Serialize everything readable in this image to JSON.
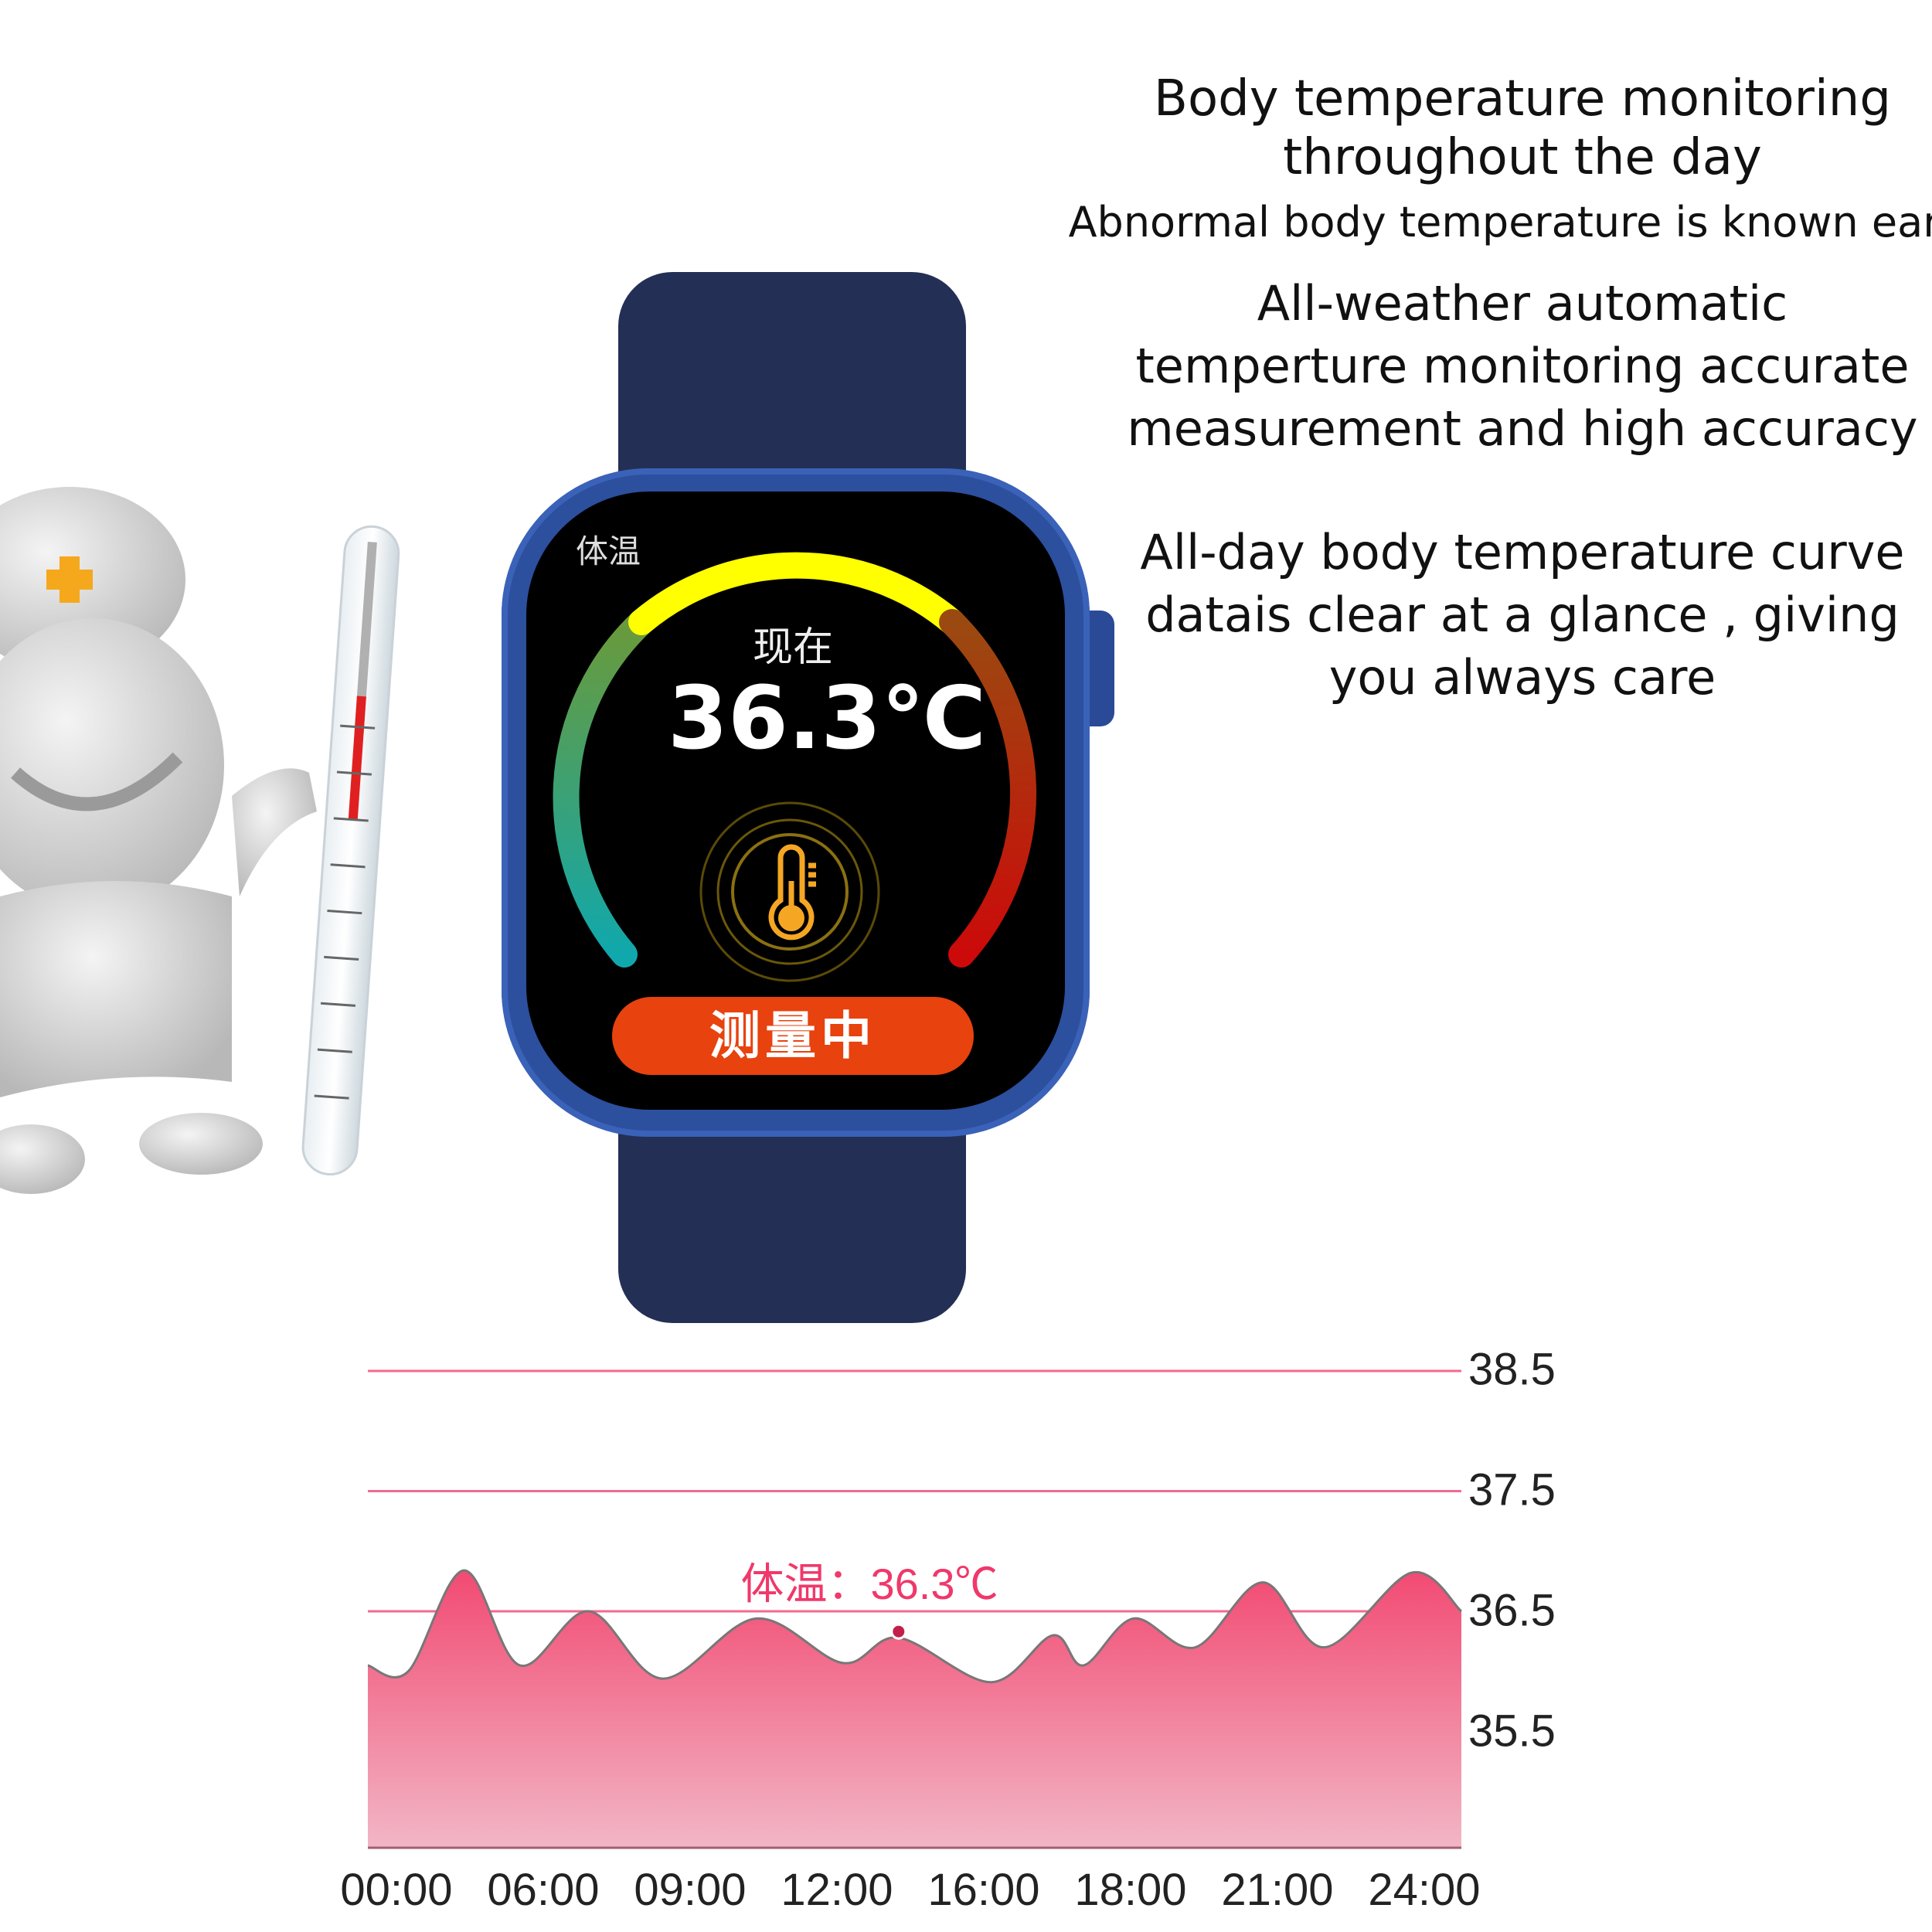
{
  "headline": {
    "line1": "Body temperature monitoring",
    "line2": "throughout the day",
    "line3": "Abnormal body temperature is known early"
  },
  "feature1": {
    "line1": "All-weather automatic",
    "line2": "temperture monitoring accurate",
    "line3": "measurement and high accuracy"
  },
  "feature2": {
    "line1": "All-day body temperature curve",
    "line2": "datais clear at a glance , giving",
    "line3": "you always care"
  },
  "watch": {
    "screen_title": "体温",
    "now_label": "现在",
    "temperature": "36.3℃",
    "status_button": "测量中",
    "thermometer_icon": "thermometer-icon",
    "colors": {
      "band": "#242f55",
      "case": "#2c4f9e",
      "button": "#e8420e",
      "icon": "#f5a623"
    }
  },
  "chart_data": {
    "type": "area",
    "title": "",
    "xlabel": "",
    "ylabel": "",
    "x_tick_labels": [
      "00:00",
      "06:00",
      "09:00",
      "12:00",
      "16:00",
      "18:00",
      "21:00",
      "24:00"
    ],
    "y_tick_labels": [
      "38.5",
      "37.5",
      "36.5",
      "35.5"
    ],
    "y_ticks": [
      38.5,
      37.5,
      36.5,
      35.5
    ],
    "ylim": [
      34.55,
      38.5
    ],
    "grid_lines_at": [
      38.5,
      37.5,
      36.5
    ],
    "annotation": "体温：36.3℃",
    "highlight_point": {
      "x": 3.42,
      "y": 36.28
    },
    "series": [
      {
        "x_category_index": [
          -0.19,
          0.08,
          0.46,
          0.84,
          1.31,
          1.81,
          2.45,
          3.04,
          3.42,
          4.05,
          4.47,
          4.68,
          5.02,
          5.44,
          5.9,
          6.32,
          6.91,
          7.25
        ],
        "values": [
          36.05,
          36.0,
          36.84,
          36.05,
          36.5,
          35.94,
          36.44,
          36.07,
          36.28,
          35.91,
          36.3,
          36.05,
          36.44,
          36.2,
          36.74,
          36.2,
          36.82,
          36.5
        ]
      }
    ],
    "colors": {
      "fill_top": "#f24a72",
      "fill_bottom": "#f2b6c6",
      "grid": "#f0507a",
      "annotation": "#f0386a"
    }
  }
}
